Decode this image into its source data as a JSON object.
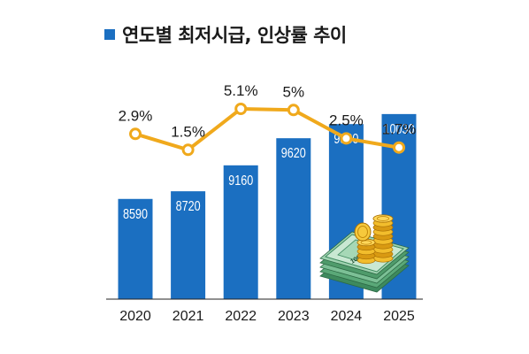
{
  "chart_data": {
    "type": "bar",
    "title": "연도별 최저시급, 인상률 추이",
    "categories": [
      "2020",
      "2021",
      "2022",
      "2023",
      "2024",
      "2025"
    ],
    "series": [
      {
        "type": "bar",
        "values": [
          8590,
          8720,
          9160,
          9620,
          9860,
          10030
        ],
        "labels": [
          "8590",
          "8720",
          "9160",
          "9620",
          "9860",
          "10030"
        ]
      },
      {
        "type": "line",
        "values": [
          2.9,
          1.5,
          5.1,
          5.0,
          2.5,
          1.7
        ],
        "labels": [
          "2.9%",
          "1.5%",
          "5.1%",
          "5%",
          "2.5%",
          "1.7%"
        ]
      }
    ],
    "legend": "none",
    "grid": false
  },
  "colors": {
    "bar": "#1b6fc1",
    "line": "#f0a91c",
    "marker_fill": "#ffffff",
    "title_square": "#1b6fc1",
    "axis": "#222222"
  },
  "decoration": {
    "illustration": "money-stack-with-gold-coins",
    "bill_text": "10000"
  }
}
